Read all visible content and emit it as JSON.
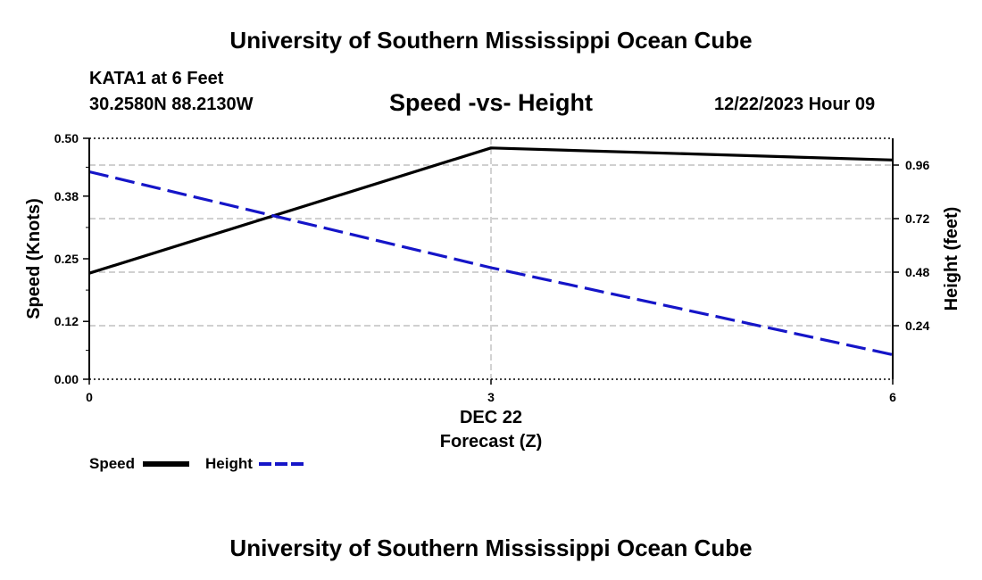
{
  "header": {
    "title": "University of Southern Mississippi Ocean Cube",
    "station": "KATA1 at 6 Feet",
    "coordinates": "30.2580N  88.2130W",
    "timestamp": "12/22/2023 Hour 09"
  },
  "footer": {
    "title": "University of Southern Mississippi Ocean Cube"
  },
  "chart_data": {
    "type": "line",
    "title": "Speed -vs- Height",
    "x": [
      0,
      3,
      6
    ],
    "x_ticks": [
      "0",
      "3",
      "6"
    ],
    "x_date_label": "DEC 22",
    "xlabel": "Forecast (Z)",
    "xlim": [
      0,
      6
    ],
    "ylabel_left": "Speed (Knots)",
    "ylim_left": [
      0,
      0.5
    ],
    "yticks_left": [
      "0.00",
      "0.12",
      "0.25",
      "0.38",
      "0.50"
    ],
    "ylabel_right": "Height (feet)",
    "ylim_right": [
      0,
      1.08
    ],
    "yticks_right": [
      "0.24",
      "0.48",
      "0.72",
      "0.96"
    ],
    "grid": true,
    "legend_position": "bottom-left",
    "series": [
      {
        "name": "Speed",
        "axis": "left",
        "style": "solid",
        "color": "#000000",
        "values": [
          0.22,
          0.48,
          0.455
        ]
      },
      {
        "name": "Height",
        "axis": "right",
        "style": "dashed",
        "color": "#1515c8",
        "values": [
          0.93,
          0.5,
          0.11
        ]
      }
    ]
  }
}
